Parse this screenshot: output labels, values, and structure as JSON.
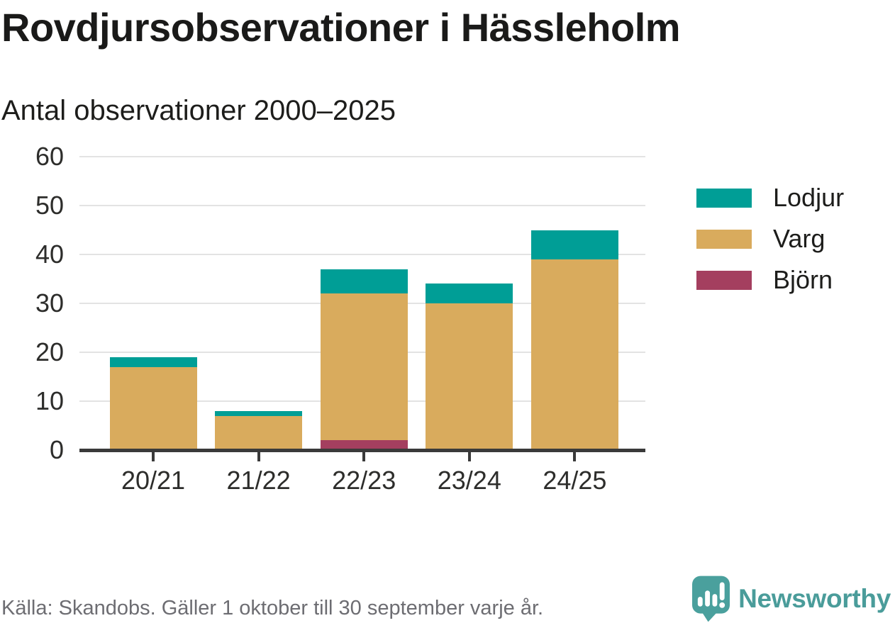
{
  "header": {
    "title": "Rovdjursobservationer i Hässleholm",
    "subtitle": "Antal observationer 2000–2025"
  },
  "chart_data": {
    "type": "bar",
    "stacked": true,
    "title": "Rovdjursobservationer i Hässleholm",
    "subtitle": "Antal observationer 2000–2025",
    "categories": [
      "20/21",
      "21/22",
      "22/23",
      "23/24",
      "24/25"
    ],
    "series": [
      {
        "name": "Lodjur",
        "color": "#009e96",
        "values": [
          2,
          1,
          5,
          4,
          6
        ]
      },
      {
        "name": "Varg",
        "color": "#d9ab5d",
        "values": [
          17,
          7,
          30,
          30,
          39
        ]
      },
      {
        "name": "Björn",
        "color": "#a43f5f",
        "values": [
          0,
          0,
          2,
          0,
          0
        ]
      }
    ],
    "totals": [
      19,
      8,
      37,
      34,
      45
    ],
    "stack_order_bottom_to_top": [
      "Björn",
      "Varg",
      "Lodjur"
    ],
    "xlabel": "",
    "ylabel": "",
    "ylim": [
      0,
      60
    ],
    "yticks": [
      0,
      10,
      20,
      30,
      40,
      50,
      60
    ],
    "grid": "horizontal",
    "legend_position": "right"
  },
  "footer": {
    "source": "Källa: Skandobs. Gäller 1 oktober till 30 september varje år.",
    "brand": "Newsworthy"
  },
  "colors": {
    "grid": "#e3e3e3",
    "axis": "#3a3a3a",
    "text": "#2d2d2b",
    "muted": "#6d6d72",
    "brand_teal": "#4aa09d"
  }
}
